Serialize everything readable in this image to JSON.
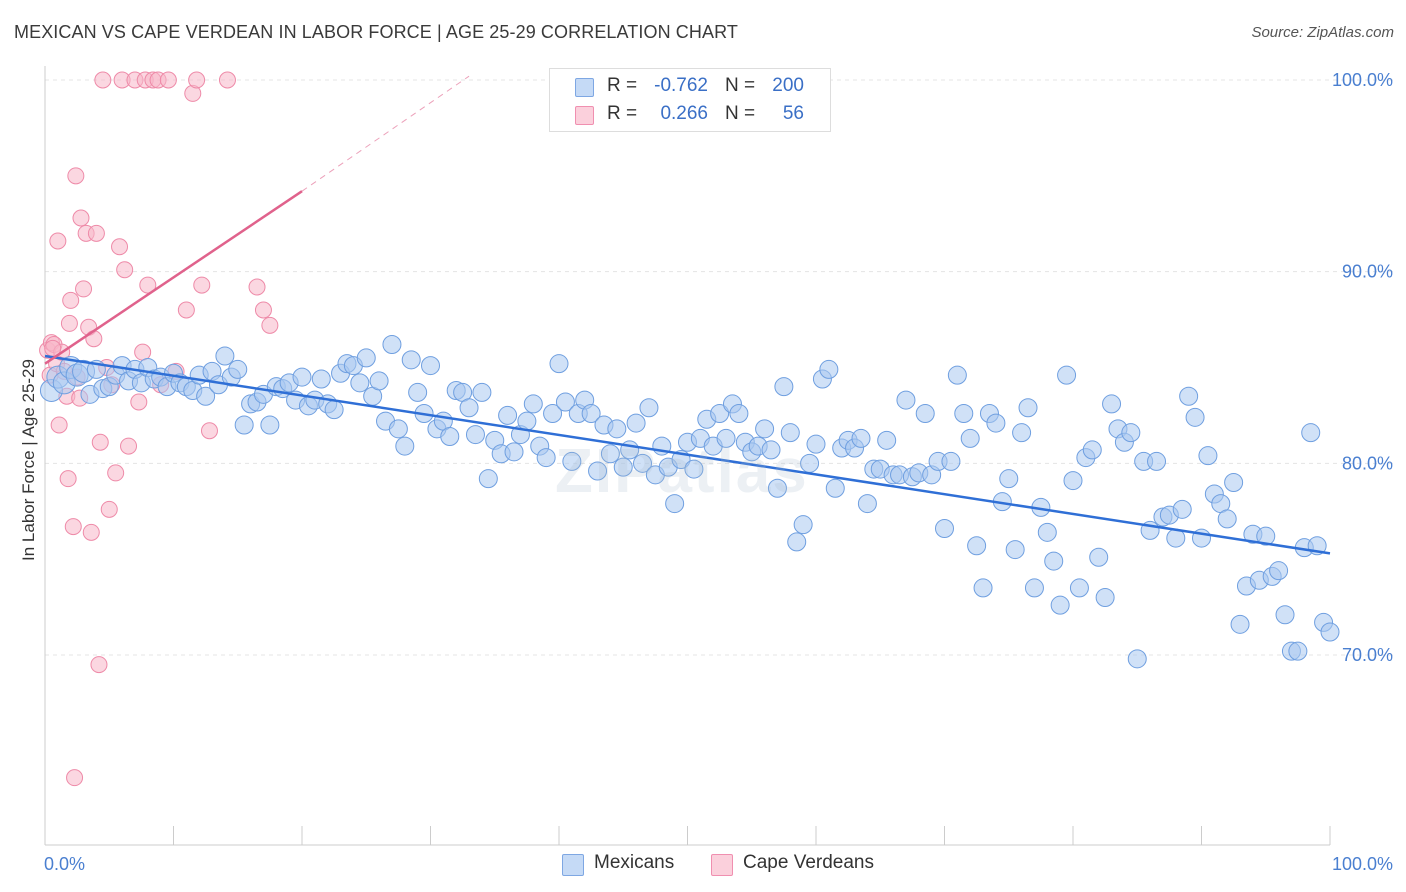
{
  "header": {
    "title": "MEXICAN VS CAPE VERDEAN IN LABOR FORCE | AGE 25-29 CORRELATION CHART",
    "source": "Source: ZipAtlas.com"
  },
  "watermark": "ZIPatlas",
  "legend": {
    "rows": [
      {
        "r_label": "R =",
        "r_value": "-0.762",
        "n_label": "N =",
        "n_value": "200",
        "color": "#a9c8f0"
      },
      {
        "r_label": "R =",
        "r_value": "0.266",
        "n_label": "N =",
        "n_value": "56",
        "color": "#f7b6c8"
      }
    ]
  },
  "bottom_legend": {
    "items": [
      {
        "label": "Mexicans",
        "color": "#a9c8f0"
      },
      {
        "label": "Cape Verdeans",
        "color": "#f7b6c8"
      }
    ]
  },
  "colors": {
    "blue_fill": "#a9c8f0",
    "blue_stroke": "#6f9fe0",
    "blue_line": "#2f6fd6",
    "pink_fill": "#f7b6c8",
    "pink_stroke": "#ee8aa8",
    "pink_line": "#e0628c",
    "tick_text": "#4a7fd0",
    "grid": "#e4e4e4"
  },
  "chart_data": {
    "type": "scatter",
    "title": "MEXICAN VS CAPE VERDEAN IN LABOR FORCE | AGE 25-29 CORRELATION CHART",
    "xlabel": "",
    "ylabel": "In Labor Force | Age 25-29",
    "xlim": [
      0,
      100
    ],
    "ylim": [
      60,
      102
    ],
    "x_tick_labels": [
      "0.0%",
      "100.0%"
    ],
    "y_ticks": [
      70,
      80,
      90,
      100
    ],
    "y_tick_labels": [
      "70.0%",
      "80.0%",
      "90.0%",
      "100.0%"
    ],
    "grid": true,
    "legend_position": "top-center",
    "series": [
      {
        "name": "Mexicans",
        "r": -0.762,
        "n": 200,
        "trend": {
          "x": [
            0,
            100
          ],
          "y": [
            85.6,
            75.3
          ]
        },
        "points": [
          [
            0.5,
            83.8
          ],
          [
            1.0,
            84.5
          ],
          [
            1.5,
            84.2
          ],
          [
            2.0,
            85.0
          ],
          [
            2.5,
            84.6
          ],
          [
            3.0,
            84.8
          ],
          [
            3.5,
            83.6
          ],
          [
            4.0,
            84.9
          ],
          [
            4.5,
            83.9
          ],
          [
            5.0,
            84.0
          ],
          [
            5.5,
            84.6
          ],
          [
            6.0,
            85.1
          ],
          [
            6.5,
            84.3
          ],
          [
            7.0,
            84.9
          ],
          [
            7.5,
            84.2
          ],
          [
            8.0,
            85.0
          ],
          [
            8.5,
            84.4
          ],
          [
            9.0,
            84.5
          ],
          [
            9.5,
            84.0
          ],
          [
            10.0,
            84.7
          ],
          [
            10.5,
            84.2
          ],
          [
            11.0,
            84.0
          ],
          [
            11.5,
            83.8
          ],
          [
            12.0,
            84.6
          ],
          [
            12.5,
            83.5
          ],
          [
            13.0,
            84.8
          ],
          [
            13.5,
            84.1
          ],
          [
            14.0,
            85.6
          ],
          [
            14.5,
            84.5
          ],
          [
            15.0,
            84.9
          ],
          [
            15.5,
            82.0
          ],
          [
            16.0,
            83.1
          ],
          [
            16.5,
            83.2
          ],
          [
            17.0,
            83.6
          ],
          [
            17.5,
            82.0
          ],
          [
            18.0,
            84.0
          ],
          [
            18.5,
            83.9
          ],
          [
            19.0,
            84.2
          ],
          [
            19.5,
            83.3
          ],
          [
            20.0,
            84.5
          ],
          [
            20.5,
            83.0
          ],
          [
            21.0,
            83.3
          ],
          [
            21.5,
            84.4
          ],
          [
            22.0,
            83.1
          ],
          [
            22.5,
            82.8
          ],
          [
            23.0,
            84.7
          ],
          [
            23.5,
            85.2
          ],
          [
            24.0,
            85.1
          ],
          [
            24.5,
            84.2
          ],
          [
            25.0,
            85.5
          ],
          [
            25.5,
            83.5
          ],
          [
            26.0,
            84.3
          ],
          [
            26.5,
            82.2
          ],
          [
            27.0,
            86.2
          ],
          [
            27.5,
            81.8
          ],
          [
            28.0,
            80.9
          ],
          [
            28.5,
            85.4
          ],
          [
            29.0,
            83.7
          ],
          [
            29.5,
            82.6
          ],
          [
            30.0,
            85.1
          ],
          [
            30.5,
            81.8
          ],
          [
            31.0,
            82.2
          ],
          [
            31.5,
            81.4
          ],
          [
            32.0,
            83.8
          ],
          [
            32.5,
            83.7
          ],
          [
            33.0,
            82.9
          ],
          [
            33.5,
            81.5
          ],
          [
            34.0,
            83.7
          ],
          [
            34.5,
            79.2
          ],
          [
            35.0,
            81.2
          ],
          [
            35.5,
            80.5
          ],
          [
            36.0,
            82.5
          ],
          [
            36.5,
            80.6
          ],
          [
            37.0,
            81.5
          ],
          [
            37.5,
            82.2
          ],
          [
            38.0,
            83.1
          ],
          [
            38.5,
            80.9
          ],
          [
            39.0,
            80.3
          ],
          [
            39.5,
            82.6
          ],
          [
            40.0,
            85.2
          ],
          [
            40.5,
            83.2
          ],
          [
            41.0,
            80.1
          ],
          [
            41.5,
            82.6
          ],
          [
            42.0,
            83.3
          ],
          [
            42.5,
            82.6
          ],
          [
            43.0,
            79.6
          ],
          [
            43.5,
            82.0
          ],
          [
            44.0,
            80.5
          ],
          [
            44.5,
            81.8
          ],
          [
            45.0,
            79.8
          ],
          [
            45.5,
            80.7
          ],
          [
            46.0,
            82.1
          ],
          [
            46.5,
            80.0
          ],
          [
            47.0,
            82.9
          ],
          [
            47.5,
            79.4
          ],
          [
            48.0,
            80.9
          ],
          [
            48.5,
            79.8
          ],
          [
            49.0,
            77.9
          ],
          [
            49.5,
            80.2
          ],
          [
            50.0,
            81.1
          ],
          [
            50.5,
            79.7
          ],
          [
            51.0,
            81.3
          ],
          [
            51.5,
            82.3
          ],
          [
            52.0,
            80.9
          ],
          [
            52.5,
            82.6
          ],
          [
            53.0,
            81.3
          ],
          [
            53.5,
            83.1
          ],
          [
            54.0,
            82.6
          ],
          [
            54.5,
            81.1
          ],
          [
            55.0,
            80.6
          ],
          [
            55.5,
            80.9
          ],
          [
            56.0,
            81.8
          ],
          [
            56.5,
            80.7
          ],
          [
            57.0,
            78.7
          ],
          [
            57.5,
            84.0
          ],
          [
            58.0,
            81.6
          ],
          [
            58.5,
            75.9
          ],
          [
            59.0,
            76.8
          ],
          [
            59.5,
            80.0
          ],
          [
            60.0,
            81.0
          ],
          [
            60.5,
            84.4
          ],
          [
            61.0,
            84.9
          ],
          [
            61.5,
            78.7
          ],
          [
            62.0,
            80.8
          ],
          [
            62.5,
            81.2
          ],
          [
            63.0,
            80.8
          ],
          [
            63.5,
            81.3
          ],
          [
            64.0,
            77.9
          ],
          [
            64.5,
            79.7
          ],
          [
            65.0,
            79.7
          ],
          [
            65.5,
            81.2
          ],
          [
            66.0,
            79.4
          ],
          [
            66.5,
            79.4
          ],
          [
            67.0,
            83.3
          ],
          [
            67.5,
            79.3
          ],
          [
            68.0,
            79.5
          ],
          [
            68.5,
            82.6
          ],
          [
            69.0,
            79.4
          ],
          [
            69.5,
            80.1
          ],
          [
            70.0,
            76.6
          ],
          [
            70.5,
            80.1
          ],
          [
            71.0,
            84.6
          ],
          [
            71.5,
            82.6
          ],
          [
            72.0,
            81.3
          ],
          [
            72.5,
            75.7
          ],
          [
            73.0,
            73.5
          ],
          [
            73.5,
            82.6
          ],
          [
            74.0,
            82.1
          ],
          [
            74.5,
            78.0
          ],
          [
            75.0,
            79.2
          ],
          [
            75.5,
            75.5
          ],
          [
            76.0,
            81.6
          ],
          [
            76.5,
            82.9
          ],
          [
            77.0,
            73.5
          ],
          [
            77.5,
            77.7
          ],
          [
            78.0,
            76.4
          ],
          [
            78.5,
            74.9
          ],
          [
            79.0,
            72.6
          ],
          [
            79.5,
            84.6
          ],
          [
            80.0,
            79.1
          ],
          [
            80.5,
            73.5
          ],
          [
            81.0,
            80.3
          ],
          [
            81.5,
            80.7
          ],
          [
            82.0,
            75.1
          ],
          [
            82.5,
            73.0
          ],
          [
            83.0,
            83.1
          ],
          [
            83.5,
            81.8
          ],
          [
            84.0,
            81.1
          ],
          [
            84.5,
            81.6
          ],
          [
            85.0,
            69.8
          ],
          [
            85.5,
            80.1
          ],
          [
            86.0,
            76.5
          ],
          [
            86.5,
            80.1
          ],
          [
            87.0,
            77.2
          ],
          [
            87.5,
            77.3
          ],
          [
            88.0,
            76.1
          ],
          [
            88.5,
            77.6
          ],
          [
            89.0,
            83.5
          ],
          [
            89.5,
            82.4
          ],
          [
            90.0,
            76.1
          ],
          [
            90.5,
            80.4
          ],
          [
            91.0,
            78.4
          ],
          [
            91.5,
            77.9
          ],
          [
            92.0,
            77.1
          ],
          [
            92.5,
            79.0
          ],
          [
            93.0,
            71.6
          ],
          [
            93.5,
            73.6
          ],
          [
            94.0,
            76.3
          ],
          [
            94.5,
            73.9
          ],
          [
            95.0,
            76.2
          ],
          [
            95.5,
            74.1
          ],
          [
            96.0,
            74.4
          ],
          [
            96.5,
            72.1
          ],
          [
            97.0,
            70.2
          ],
          [
            97.5,
            70.2
          ],
          [
            98.0,
            75.6
          ],
          [
            98.5,
            81.6
          ],
          [
            99.0,
            75.7
          ],
          [
            99.5,
            71.7
          ],
          [
            100.0,
            71.2
          ]
        ]
      },
      {
        "name": "Cape Verdeans",
        "r": 0.266,
        "n": 56,
        "trend": {
          "x": [
            0,
            20
          ],
          "y": [
            85.2,
            94.2
          ]
        },
        "trend_extension": {
          "x": [
            20,
            33
          ],
          "y": [
            94.2,
            100.2
          ]
        },
        "points": [
          [
            0.2,
            85.9
          ],
          [
            0.4,
            84.6
          ],
          [
            0.5,
            86.3
          ],
          [
            0.7,
            86.2
          ],
          [
            0.9,
            85.2
          ],
          [
            1.0,
            91.6
          ],
          [
            1.1,
            82.0
          ],
          [
            1.3,
            85.8
          ],
          [
            1.5,
            84.8
          ],
          [
            1.7,
            83.5
          ],
          [
            1.8,
            79.2
          ],
          [
            1.9,
            87.3
          ],
          [
            2.0,
            88.5
          ],
          [
            2.2,
            76.7
          ],
          [
            2.4,
            95.0
          ],
          [
            2.5,
            84.5
          ],
          [
            2.7,
            83.4
          ],
          [
            2.8,
            92.8
          ],
          [
            3.0,
            89.1
          ],
          [
            3.2,
            92.0
          ],
          [
            3.4,
            87.1
          ],
          [
            3.6,
            76.4
          ],
          [
            3.8,
            86.5
          ],
          [
            4.0,
            92.0
          ],
          [
            4.2,
            69.5
          ],
          [
            4.3,
            81.1
          ],
          [
            4.5,
            100.0
          ],
          [
            4.8,
            85.0
          ],
          [
            5.0,
            77.6
          ],
          [
            5.2,
            84.1
          ],
          [
            5.5,
            79.5
          ],
          [
            5.8,
            91.3
          ],
          [
            6.0,
            100.0
          ],
          [
            6.2,
            90.1
          ],
          [
            6.5,
            80.9
          ],
          [
            7.0,
            100.0
          ],
          [
            7.3,
            83.2
          ],
          [
            7.6,
            85.8
          ],
          [
            7.8,
            100.0
          ],
          [
            8.0,
            89.3
          ],
          [
            8.4,
            100.0
          ],
          [
            8.8,
            100.0
          ],
          [
            9.0,
            84.1
          ],
          [
            9.6,
            100.0
          ],
          [
            10.2,
            84.8
          ],
          [
            11.0,
            88.0
          ],
          [
            11.5,
            99.3
          ],
          [
            11.8,
            100.0
          ],
          [
            12.2,
            89.3
          ],
          [
            12.8,
            81.7
          ],
          [
            14.2,
            100.0
          ],
          [
            16.5,
            89.2
          ],
          [
            17.0,
            88.0
          ],
          [
            17.5,
            87.2
          ],
          [
            2.3,
            63.6
          ],
          [
            0.6,
            86.0
          ]
        ]
      }
    ]
  }
}
